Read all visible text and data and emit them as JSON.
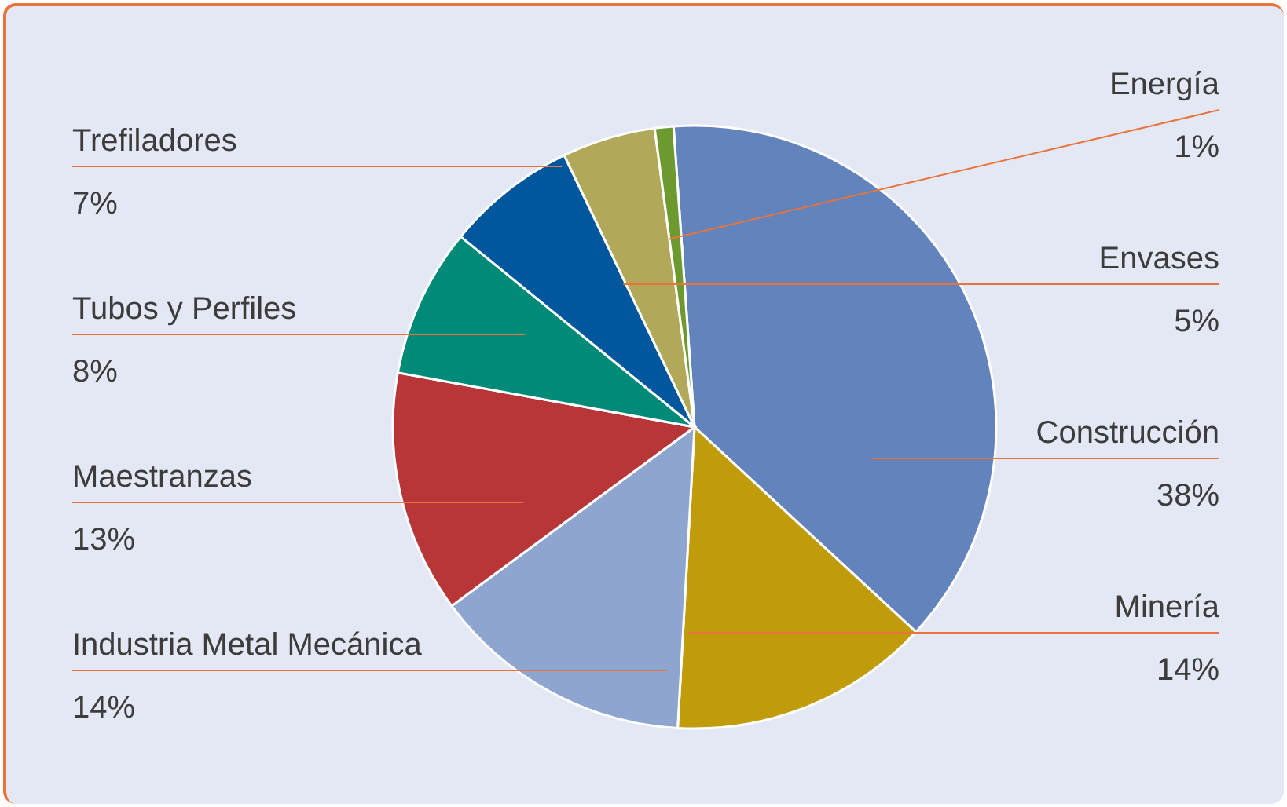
{
  "chart_data": {
    "type": "pie",
    "categories": [
      "Construcción",
      "Minería",
      "Industria Metal Mecánica",
      "Maestranzas",
      "Tubos y Perfiles",
      "Trefiladores",
      "Envases",
      "Energía"
    ],
    "values": [
      38,
      14,
      14,
      13,
      8,
      7,
      5,
      1
    ],
    "value_labels": [
      "38%",
      "14%",
      "14%",
      "13%",
      "8%",
      "7%",
      "5%",
      "1%"
    ],
    "colors": [
      "#6283bb",
      "#c09b0a",
      "#8da5cf",
      "#b83637",
      "#008b78",
      "#00579d",
      "#b2a85a",
      "#6c9a2e"
    ]
  }
}
